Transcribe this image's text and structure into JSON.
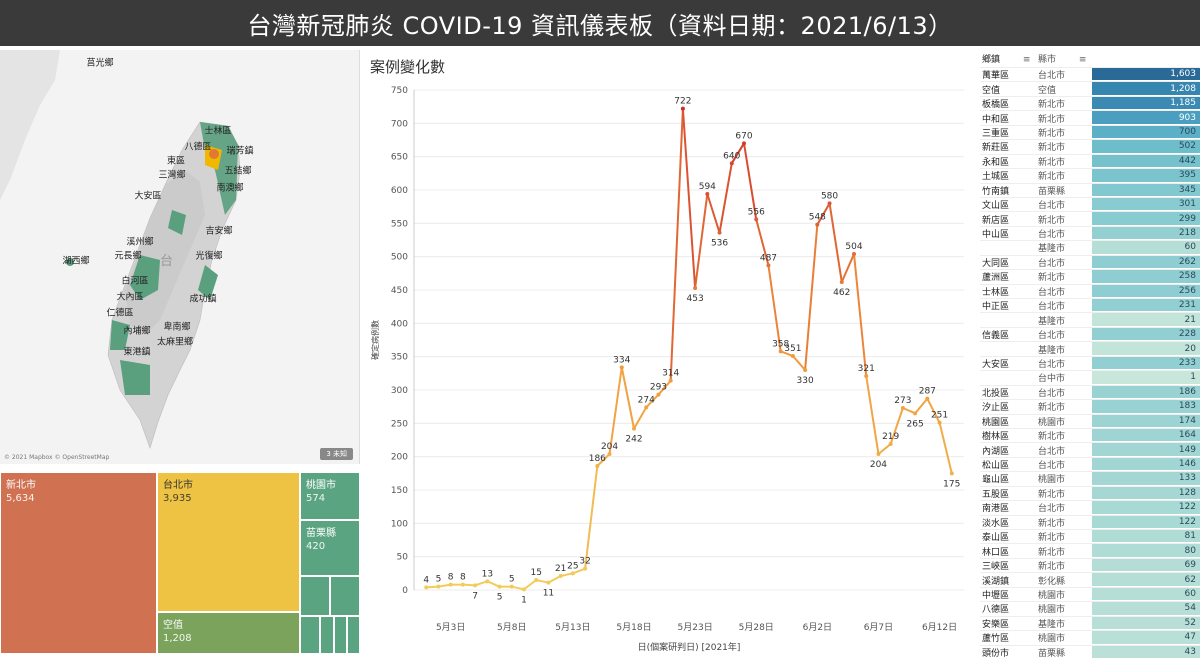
{
  "header": {
    "title": "台灣新冠肺炎 COVID-19 資訊儀表板（資料日期：2021/6/13）"
  },
  "map": {
    "labels": [
      "莒光鄉",
      "士林區",
      "八德區",
      "東區",
      "瑞芳鎮",
      "三灣鄉",
      "五結鄉",
      "南澳鄉",
      "大安區",
      "吉安鄉",
      "溪州鄉",
      "湖西鄉",
      "光復鄉",
      "元長鄉",
      "白河區",
      "成功鎮",
      "大內區",
      "仁德區",
      "卑南鄉",
      "內埔鄉",
      "太麻里鄉",
      "東港鎮"
    ],
    "credit": "© 2021 Mapbox © OpenStreetMap",
    "unknown": "3 未知"
  },
  "treemap": {
    "items": [
      {
        "name": "新北市",
        "value": "5,634",
        "color": "#d07151"
      },
      {
        "name": "台北市",
        "value": "3,935",
        "color": "#eec242"
      },
      {
        "name": "桃園市",
        "value": "574",
        "color": "#5aa481"
      },
      {
        "name": "苗栗縣",
        "value": "420",
        "color": "#5aa481"
      },
      {
        "name": "空值",
        "value": "1,208",
        "color": "#7ba35c"
      }
    ]
  },
  "chart": {
    "title": "案例變化數"
  },
  "chart_data": {
    "type": "line",
    "ylabel": "確定病例數",
    "xlabel": "日(個案研判日) [2021年]",
    "ylim": [
      0,
      750
    ],
    "yticks": [
      0,
      50,
      100,
      150,
      200,
      250,
      300,
      350,
      400,
      450,
      500,
      550,
      600,
      650,
      700,
      750
    ],
    "xticks": [
      {
        "label": "5月3日",
        "day": 3
      },
      {
        "label": "5月8日",
        "day": 8
      },
      {
        "label": "5月13日",
        "day": 13
      },
      {
        "label": "5月18日",
        "day": 18
      },
      {
        "label": "5月23日",
        "day": 23
      },
      {
        "label": "5月28日",
        "day": 28
      },
      {
        "label": "6月2日",
        "day": 33
      },
      {
        "label": "6月7日",
        "day": 38
      },
      {
        "label": "6月12日",
        "day": 43
      }
    ],
    "x_days": [
      1,
      2,
      3,
      4,
      5,
      6,
      7,
      8,
      9,
      10,
      11,
      12,
      13,
      14,
      15,
      16,
      17,
      18,
      19,
      20,
      21,
      22,
      23,
      24,
      25,
      26,
      27,
      28,
      29,
      30,
      31,
      32,
      33,
      34,
      35,
      36,
      37,
      38,
      39,
      40,
      41,
      42,
      43,
      44
    ],
    "values": [
      4,
      5,
      8,
      8,
      7,
      13,
      5,
      5,
      1,
      15,
      11,
      21,
      25,
      32,
      186,
      204,
      334,
      242,
      274,
      293,
      314,
      722,
      453,
      594,
      536,
      640,
      670,
      556,
      487,
      358,
      351,
      330,
      548,
      580,
      462,
      504,
      321,
      204,
      219,
      273,
      265,
      287,
      251,
      175
    ]
  },
  "table": {
    "col_town": "鄉鎮",
    "col_city": "縣市",
    "rows": [
      {
        "town": "萬華區",
        "city": "台北市",
        "count": "1,603",
        "color": "#2a6a97"
      },
      {
        "town": "空值",
        "city": "空值",
        "count": "1,208",
        "color": "#3786b0"
      },
      {
        "town": "板橋區",
        "city": "新北市",
        "count": "1,185",
        "color": "#3a8ab3"
      },
      {
        "town": "中和區",
        "city": "新北市",
        "count": "903",
        "color": "#4a9fc0"
      },
      {
        "town": "三重區",
        "city": "新北市",
        "count": "700",
        "color": "#5bafc6"
      },
      {
        "town": "新莊區",
        "city": "新北市",
        "count": "502",
        "color": "#6ebdcb"
      },
      {
        "town": "永和區",
        "city": "新北市",
        "count": "442",
        "color": "#75c1cc"
      },
      {
        "town": "土城區",
        "city": "新北市",
        "count": "395",
        "color": "#7bc4ce"
      },
      {
        "town": "竹南鎮",
        "city": "苗栗縣",
        "count": "345",
        "color": "#82c8cf"
      },
      {
        "town": "文山區",
        "city": "台北市",
        "count": "301",
        "color": "#88cbd0"
      },
      {
        "town": "新店區",
        "city": "新北市",
        "count": "299",
        "color": "#88cbd0"
      },
      {
        "town": "中山區",
        "city": "台北市",
        "count": "218",
        "color": "#94d0d2"
      },
      {
        "town": "",
        "city": "基隆市",
        "count": "60",
        "color": "#b5ded6"
      },
      {
        "town": "大同區",
        "city": "台北市",
        "count": "262",
        "color": "#8ecdd1"
      },
      {
        "town": "蘆洲區",
        "city": "新北市",
        "count": "258",
        "color": "#8ecdd1"
      },
      {
        "town": "士林區",
        "city": "台北市",
        "count": "256",
        "color": "#8ecdd1"
      },
      {
        "town": "中正區",
        "city": "台北市",
        "count": "231",
        "color": "#92cfd2"
      },
      {
        "town": "",
        "city": "基隆市",
        "count": "21",
        "color": "#c2e4d9"
      },
      {
        "town": "信義區",
        "city": "台北市",
        "count": "228",
        "color": "#92cfd2"
      },
      {
        "town": "",
        "city": "基隆市",
        "count": "20",
        "color": "#c2e4d9"
      },
      {
        "town": "大安區",
        "city": "台北市",
        "count": "233",
        "color": "#92cfd2"
      },
      {
        "town": "",
        "city": "台中市",
        "count": "1",
        "color": "#c8e7da"
      },
      {
        "town": "北投區",
        "city": "台北市",
        "count": "186",
        "color": "#99d2d3"
      },
      {
        "town": "汐止區",
        "city": "新北市",
        "count": "183",
        "color": "#99d2d3"
      },
      {
        "town": "桃園區",
        "city": "桃園市",
        "count": "174",
        "color": "#9cd3d3"
      },
      {
        "town": "樹林區",
        "city": "新北市",
        "count": "164",
        "color": "#9ed4d4"
      },
      {
        "town": "內湖區",
        "city": "台北市",
        "count": "149",
        "color": "#a1d6d4"
      },
      {
        "town": "松山區",
        "city": "台北市",
        "count": "146",
        "color": "#a1d6d4"
      },
      {
        "town": "龜山區",
        "city": "桃園市",
        "count": "133",
        "color": "#a4d7d4"
      },
      {
        "town": "五股區",
        "city": "新北市",
        "count": "128",
        "color": "#a5d8d5"
      },
      {
        "town": "南港區",
        "city": "台北市",
        "count": "122",
        "color": "#a7d9d5"
      },
      {
        "town": "淡水區",
        "city": "新北市",
        "count": "122",
        "color": "#a7d9d5"
      },
      {
        "town": "泰山區",
        "city": "新北市",
        "count": "81",
        "color": "#b0dcd6"
      },
      {
        "town": "林口區",
        "city": "新北市",
        "count": "80",
        "color": "#b0dcd6"
      },
      {
        "town": "三峽區",
        "city": "新北市",
        "count": "69",
        "color": "#b3ddd6"
      },
      {
        "town": "溪湖鎮",
        "city": "彰化縣",
        "count": "62",
        "color": "#b5ded6"
      },
      {
        "town": "中壢區",
        "city": "桃園市",
        "count": "60",
        "color": "#b5ded6"
      },
      {
        "town": "八德區",
        "city": "桃園市",
        "count": "54",
        "color": "#b7dfd7"
      },
      {
        "town": "安樂區",
        "city": "基隆市",
        "count": "52",
        "color": "#b7dfd7"
      },
      {
        "town": "蘆竹區",
        "city": "桃園市",
        "count": "47",
        "color": "#b9e0d7"
      },
      {
        "town": "頭份市",
        "city": "苗栗縣",
        "count": "43",
        "color": "#bae0d7"
      }
    ]
  }
}
